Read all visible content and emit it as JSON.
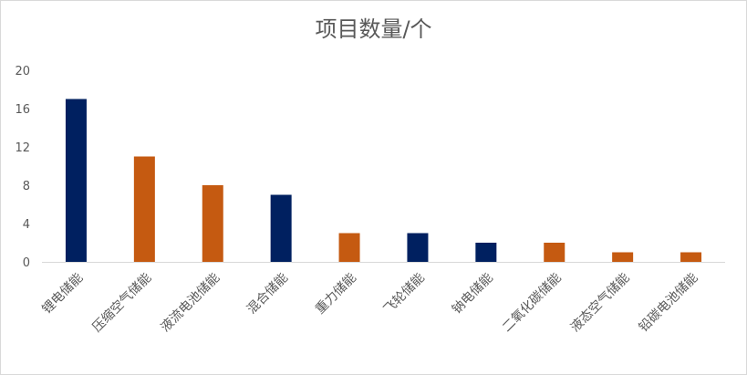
{
  "chart_data": {
    "type": "bar",
    "title": "项目数量/个",
    "xlabel": "",
    "ylabel": "",
    "ylim": [
      0,
      20
    ],
    "yticks": [
      0,
      4,
      8,
      12,
      16,
      20
    ],
    "grid": false,
    "legend": "none",
    "categories": [
      "锂电储能",
      "压缩空气储能",
      "液流电池储能",
      "混合储能",
      "重力储能",
      "飞轮储能",
      "钠电储能",
      "二氧化碳储能",
      "液态空气储能",
      "铅碳电池储能"
    ],
    "values": [
      17,
      11,
      8,
      7,
      3,
      3,
      2,
      2,
      1,
      1
    ],
    "bar_colors": [
      "#002060",
      "#c55a11",
      "#c55a11",
      "#002060",
      "#c55a11",
      "#002060",
      "#002060",
      "#c55a11",
      "#c55a11",
      "#c55a11"
    ]
  }
}
